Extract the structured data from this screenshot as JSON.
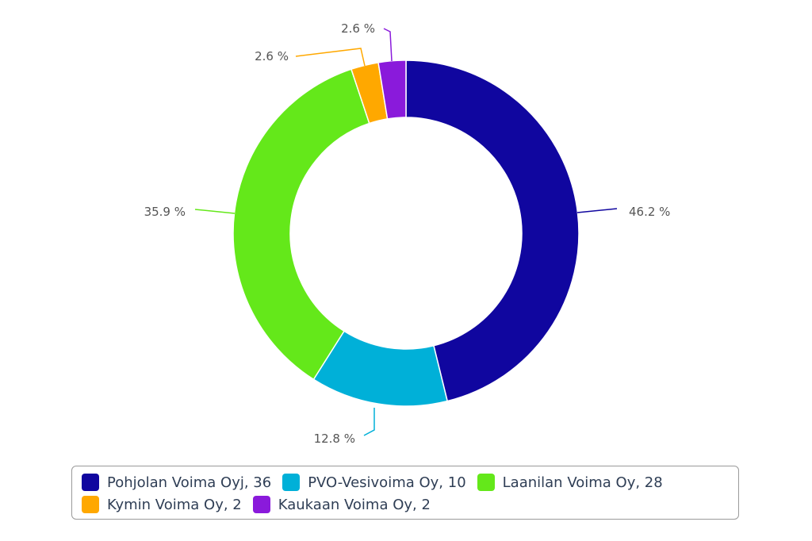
{
  "chart_data": {
    "type": "pie",
    "donut": true,
    "series": [
      {
        "name": "Pohjolan Voima Oyj",
        "value": 36,
        "percent_label": "46.2 %",
        "color": "#10069f"
      },
      {
        "name": "PVO-Vesivoima Oy",
        "value": 10,
        "percent_label": "12.8 %",
        "color": "#00b0d8"
      },
      {
        "name": "Laanilan Voima Oy",
        "value": 28,
        "percent_label": "35.9 %",
        "color": "#64e81a"
      },
      {
        "name": "Kymin Voima Oy",
        "value": 2,
        "percent_label": "2.6 %",
        "color": "#ffa800"
      },
      {
        "name": "Kaukaan Voima Oy",
        "value": 2,
        "percent_label": "2.6 %",
        "color": "#8a1adb"
      }
    ],
    "legend": {
      "placement": "bottom",
      "entries": [
        "Pohjolan Voima Oyj, 36",
        "PVO-Vesivoima Oy, 10",
        "Laanilan Voima Oy, 28",
        "Kymin Voima Oy, 2",
        "Kaukaan Voima Oy, 2"
      ]
    }
  }
}
